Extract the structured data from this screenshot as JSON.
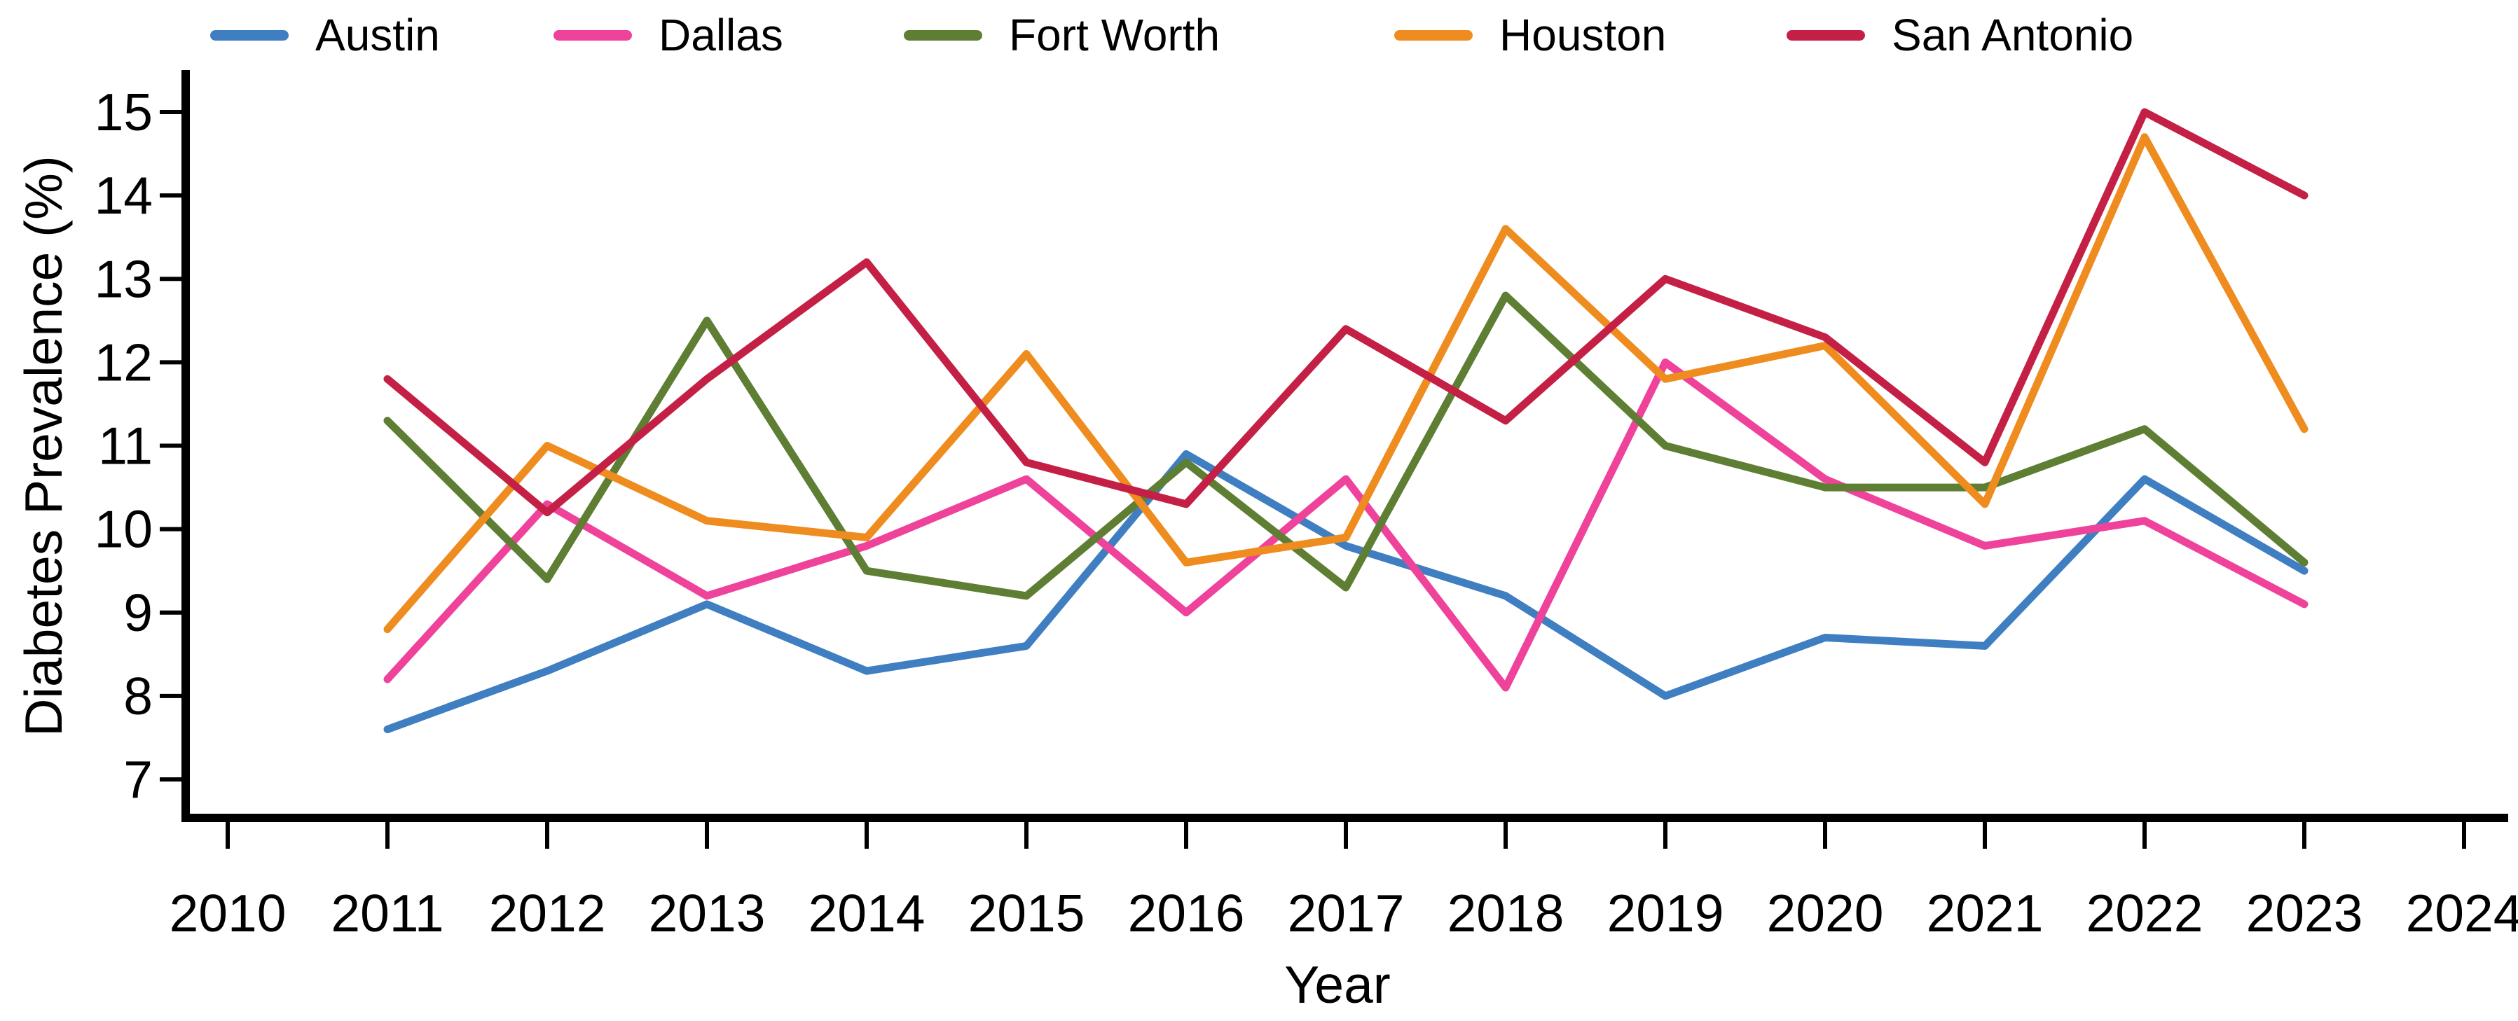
{
  "figure": {
    "background": "#ffffff",
    "text_color": "#000000",
    "axis_color": "#000000"
  },
  "legend": {
    "position": "top",
    "items": [
      {
        "label": "Austin",
        "color": "#3f7fc1"
      },
      {
        "label": "Dallas",
        "color": "#ef439b"
      },
      {
        "label": "Fort Worth",
        "color": "#5e7e33"
      },
      {
        "label": "Houston",
        "color": "#ef8c1f"
      },
      {
        "label": "San Antonio",
        "color": "#c42045"
      }
    ]
  },
  "chart_data": {
    "type": "line",
    "title": "",
    "xlabel": "Year",
    "ylabel": "Diabetes Prevalence (%)",
    "x_ticks": [
      2010,
      2011,
      2012,
      2013,
      2014,
      2015,
      2016,
      2017,
      2018,
      2019,
      2020,
      2021,
      2022,
      2023,
      2024
    ],
    "y_ticks": [
      7,
      8,
      9,
      10,
      11,
      12,
      13,
      14,
      15
    ],
    "xlim": [
      2010,
      2024
    ],
    "ylim": [
      7,
      15
    ],
    "grid": "off",
    "legend_position": "top",
    "x": [
      2011,
      2012,
      2013,
      2014,
      2015,
      2016,
      2017,
      2018,
      2019,
      2020,
      2021,
      2022,
      2023
    ],
    "series": [
      {
        "name": "Austin",
        "color": "#3f7fc1",
        "values": [
          7.6,
          8.3,
          9.1,
          8.3,
          8.6,
          10.9,
          9.8,
          9.2,
          8.0,
          8.7,
          8.6,
          10.6,
          9.5
        ]
      },
      {
        "name": "Dallas",
        "color": "#ef439b",
        "values": [
          8.2,
          10.3,
          9.2,
          9.8,
          10.6,
          9.0,
          10.6,
          8.1,
          12.0,
          10.6,
          9.8,
          10.1,
          9.1
        ]
      },
      {
        "name": "Fort Worth",
        "color": "#5e7e33",
        "values": [
          11.3,
          9.4,
          12.5,
          9.5,
          9.2,
          10.8,
          9.3,
          12.8,
          11.0,
          10.5,
          10.5,
          11.2,
          9.6
        ]
      },
      {
        "name": "Houston",
        "color": "#ef8c1f",
        "values": [
          8.8,
          11.0,
          10.1,
          9.9,
          12.1,
          9.6,
          9.9,
          13.6,
          11.8,
          12.2,
          10.3,
          14.7,
          11.2
        ]
      },
      {
        "name": "San Antonio",
        "color": "#c42045",
        "values": [
          11.8,
          10.2,
          11.8,
          13.2,
          10.8,
          10.3,
          12.4,
          11.3,
          13.0,
          12.3,
          10.8,
          15.0,
          14.0
        ]
      }
    ]
  }
}
